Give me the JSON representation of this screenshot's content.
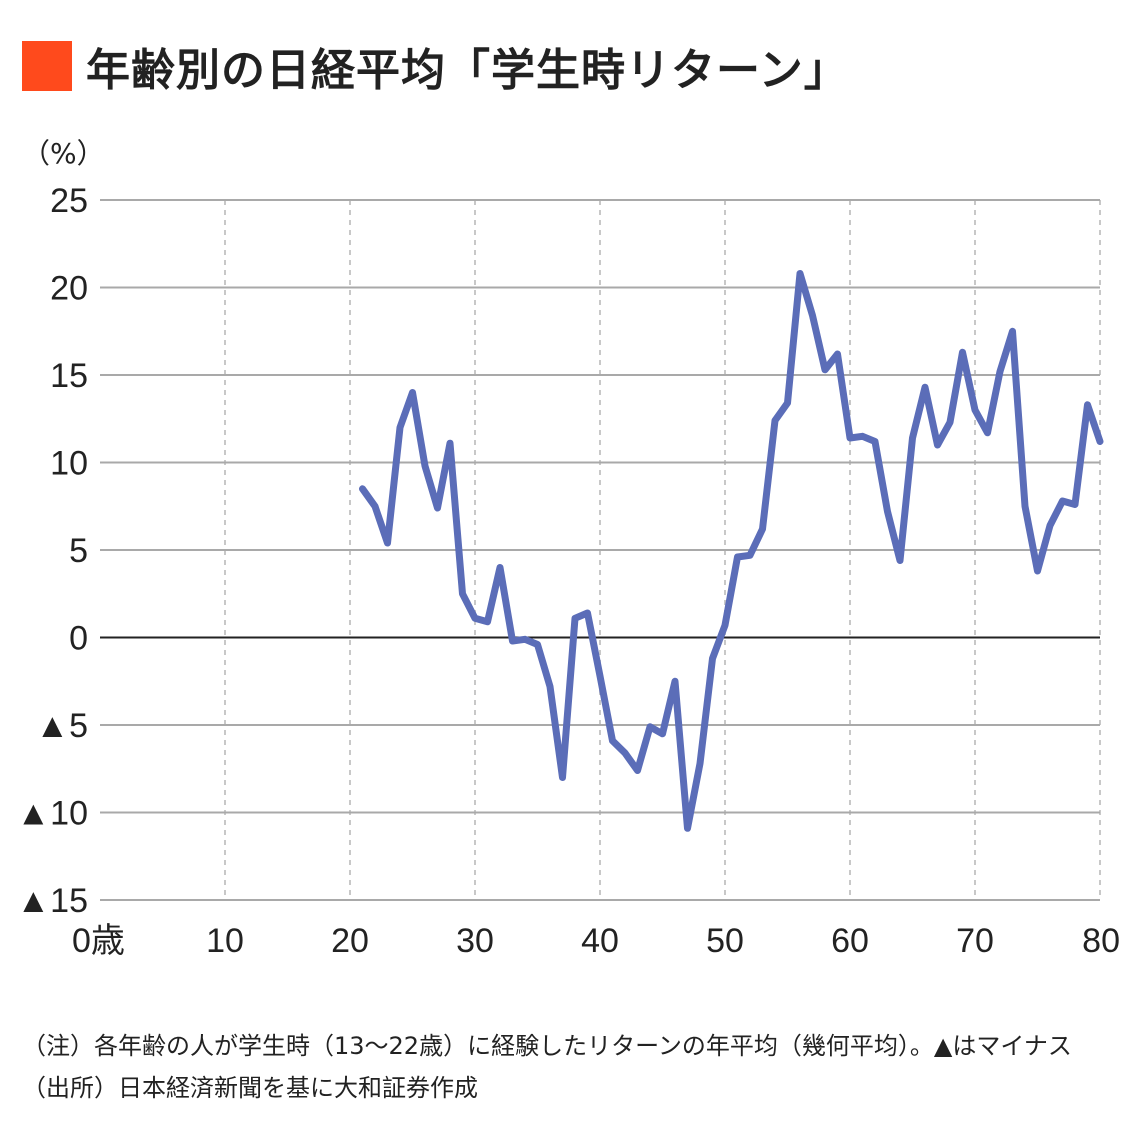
{
  "title": {
    "marker_color": "#ff4a1c",
    "text": "年齢別の日経平均「学生時リターン」"
  },
  "chart_data": {
    "type": "line",
    "title": "年齢別の日経平均「学生時リターン」",
    "ylabel": "（%）",
    "xlabel": "",
    "xlim": [
      0,
      80
    ],
    "ylim": [
      -15,
      25
    ],
    "x_ticks": [
      {
        "value": 0,
        "label": "0歳"
      },
      {
        "value": 10,
        "label": "10"
      },
      {
        "value": 20,
        "label": "20"
      },
      {
        "value": 30,
        "label": "30"
      },
      {
        "value": 40,
        "label": "40"
      },
      {
        "value": 50,
        "label": "50"
      },
      {
        "value": 60,
        "label": "60"
      },
      {
        "value": 70,
        "label": "70"
      },
      {
        "value": 80,
        "label": "80"
      }
    ],
    "y_ticks": [
      {
        "value": 25,
        "label": "25"
      },
      {
        "value": 20,
        "label": "20"
      },
      {
        "value": 15,
        "label": "15"
      },
      {
        "value": 10,
        "label": "10"
      },
      {
        "value": 5,
        "label": "5"
      },
      {
        "value": 0,
        "label": "0"
      },
      {
        "value": -5,
        "label": "▲5"
      },
      {
        "value": -10,
        "label": "▲10"
      },
      {
        "value": -15,
        "label": "▲15"
      }
    ],
    "grid": true,
    "line_color": "#5b6db8",
    "series": [
      {
        "x": [
          21,
          22,
          23,
          24,
          25,
          26,
          27,
          28,
          29,
          30,
          31,
          32,
          33,
          34,
          35,
          36,
          37,
          38,
          39,
          40,
          41,
          42,
          43,
          44,
          45,
          46,
          47,
          48,
          49,
          50,
          51,
          52,
          53,
          54,
          55,
          56,
          57,
          58,
          59,
          60,
          61,
          62,
          63,
          64,
          65,
          66,
          67,
          68,
          69,
          70,
          71,
          72,
          73,
          74,
          75,
          76,
          77,
          78,
          79,
          80
        ],
        "values": [
          8.5,
          7.5,
          5.4,
          12.0,
          14.0,
          9.8,
          7.4,
          11.1,
          2.5,
          1.1,
          0.9,
          4.0,
          -0.2,
          -0.1,
          -0.4,
          -2.8,
          -8.0,
          1.1,
          1.4,
          -2.2,
          -5.9,
          -6.6,
          -7.6,
          -5.1,
          -5.5,
          -2.5,
          -10.9,
          -7.2,
          -1.2,
          0.7,
          4.6,
          4.7,
          6.2,
          12.4,
          13.4,
          20.8,
          18.4,
          15.3,
          16.2,
          11.4,
          11.5,
          11.2,
          7.2,
          4.4,
          11.4,
          14.3,
          11.0,
          12.3,
          16.3,
          13.0,
          11.7,
          15.2,
          17.5,
          7.5,
          3.8,
          6.4,
          7.8,
          7.6,
          13.3,
          11.2
        ]
      }
    ]
  },
  "notes": [
    "（注）各年齢の人が学生時（13〜22歳）に経験したリターンの年平均（幾何平均）。▲はマイナス",
    "（出所）日本経済新聞を基に大和証券作成"
  ]
}
